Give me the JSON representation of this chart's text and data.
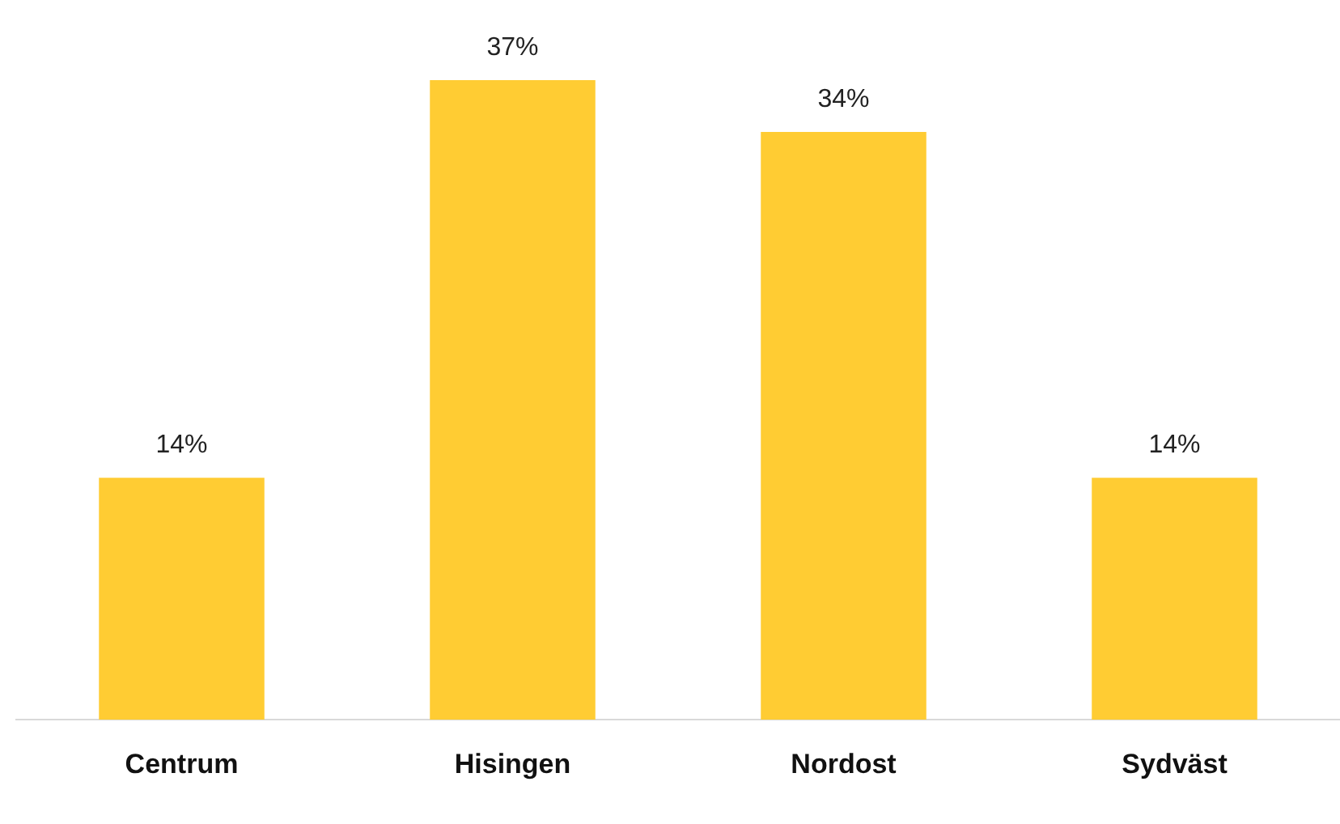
{
  "chart_data": {
    "type": "bar",
    "categories": [
      "Centrum",
      "Hisingen",
      "Nordost",
      "Sydväst"
    ],
    "values": [
      14,
      37,
      34,
      14
    ],
    "value_labels": [
      "14%",
      "37%",
      "34%",
      "14%"
    ],
    "color": "#ffcc33",
    "grid": false,
    "legend": false
  }
}
